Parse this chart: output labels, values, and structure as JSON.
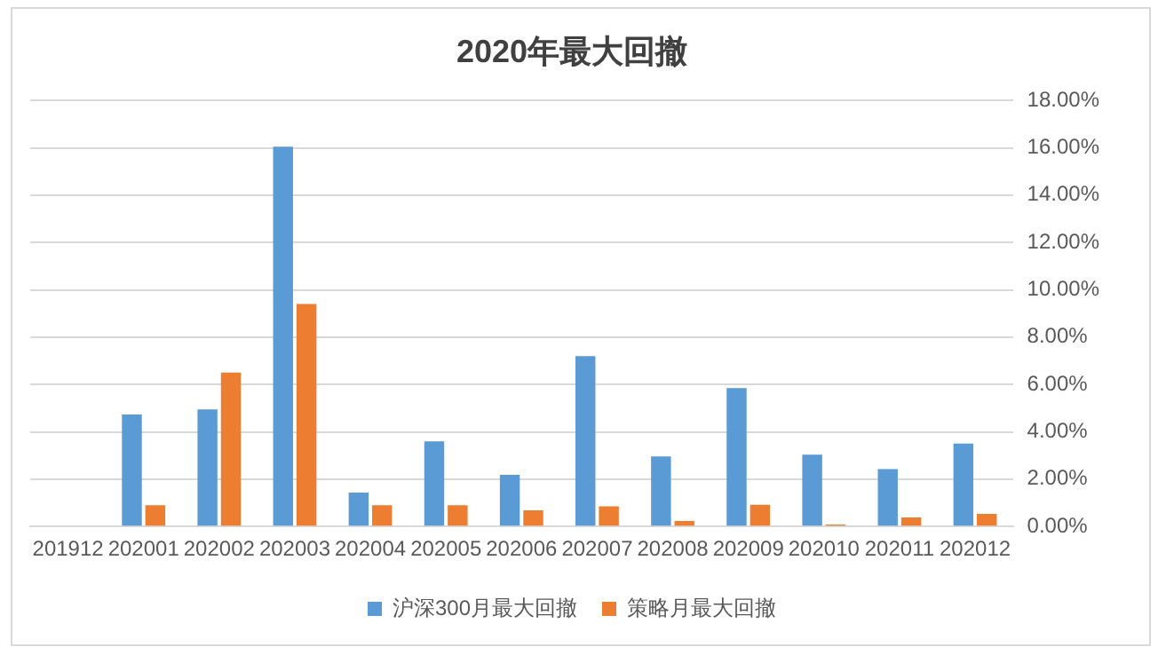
{
  "chart_data": {
    "type": "bar",
    "title": "2020年最大回撤",
    "categories": [
      "201912",
      "202001",
      "202002",
      "202003",
      "202004",
      "202005",
      "202006",
      "202007",
      "202008",
      "202009",
      "202010",
      "202011",
      "202012"
    ],
    "series": [
      {
        "name": "沪深300月最大回撤",
        "color": "#5b9bd5",
        "values": [
          0,
          4.73,
          4.95,
          16.05,
          1.43,
          3.6,
          2.18,
          7.2,
          2.96,
          5.85,
          3.04,
          2.43,
          3.5
        ]
      },
      {
        "name": "策略月最大回撤",
        "color": "#ed7d31",
        "values": [
          0,
          0.9,
          6.5,
          9.4,
          0.9,
          0.9,
          0.68,
          0.85,
          0.23,
          0.92,
          0.08,
          0.38,
          0.53
        ]
      }
    ],
    "ylim": [
      0,
      18
    ],
    "yticks": [
      {
        "value": 0,
        "label": "0.00%"
      },
      {
        "value": 2,
        "label": "2.00%"
      },
      {
        "value": 4,
        "label": "4.00%"
      },
      {
        "value": 6,
        "label": "6.00%"
      },
      {
        "value": 8,
        "label": "8.00%"
      },
      {
        "value": 10,
        "label": "10.00%"
      },
      {
        "value": 12,
        "label": "12.00%"
      },
      {
        "value": 14,
        "label": "14.00%"
      },
      {
        "value": 16,
        "label": "16.00%"
      },
      {
        "value": 18,
        "label": "18.00%"
      }
    ],
    "grid": "y",
    "legend": "bottom"
  }
}
